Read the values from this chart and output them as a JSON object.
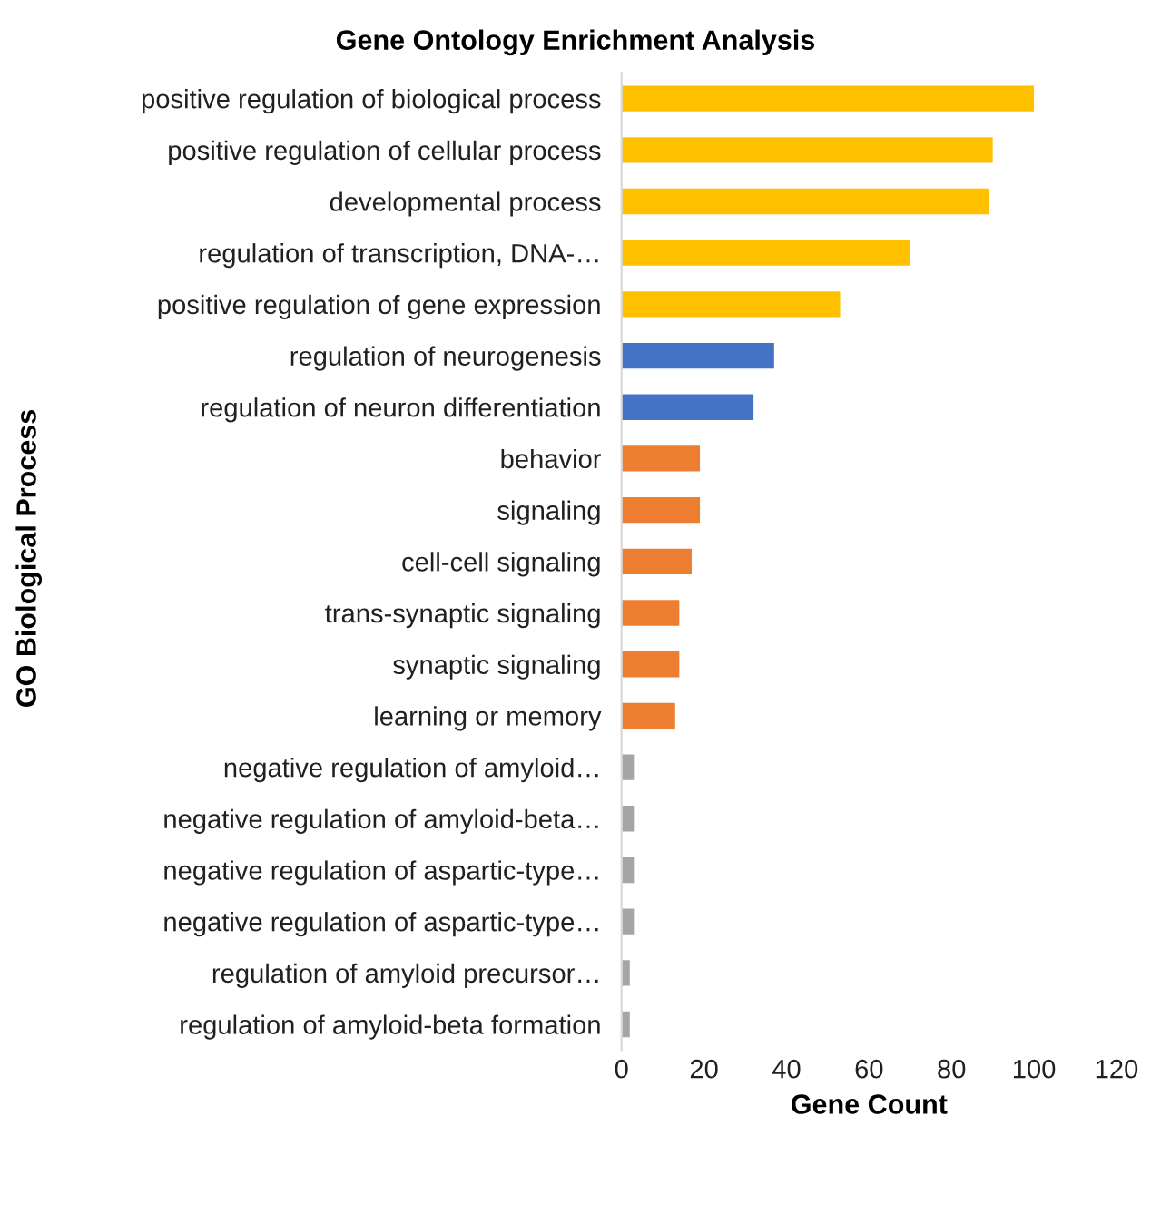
{
  "chart_data": {
    "type": "bar",
    "orientation": "horizontal",
    "title": "Gene Ontology Enrichment Analysis",
    "xlabel": "Gene Count",
    "ylabel": "GO Biological Process",
    "categories": [
      "positive regulation of biological process",
      "positive regulation of cellular process",
      "developmental process",
      "regulation of transcription, DNA-…",
      "positive regulation of gene expression",
      "regulation of neurogenesis",
      "regulation of neuron differentiation",
      "behavior",
      "signaling",
      "cell-cell signaling",
      "trans-synaptic signaling",
      "synaptic signaling",
      "learning or memory",
      "negative regulation of amyloid…",
      "negative regulation of amyloid-beta…",
      "negative regulation of aspartic-type…",
      "negative regulation of aspartic-type…",
      "regulation of amyloid precursor…",
      "regulation of amyloid-beta formation"
    ],
    "values": [
      100,
      90,
      89,
      70,
      53,
      37,
      32,
      19,
      19,
      17,
      14,
      14,
      13,
      3,
      3,
      3,
      3,
      2,
      2
    ],
    "colors": [
      "#ffc000",
      "#ffc000",
      "#ffc000",
      "#ffc000",
      "#ffc000",
      "#4472c4",
      "#4472c4",
      "#ed7d31",
      "#ed7d31",
      "#ed7d31",
      "#ed7d31",
      "#ed7d31",
      "#ed7d31",
      "#a5a5a5",
      "#a5a5a5",
      "#a5a5a5",
      "#a5a5a5",
      "#a5a5a5",
      "#a5a5a5"
    ],
    "xlim": [
      0,
      120
    ],
    "xticks": [
      0,
      20,
      40,
      60,
      80,
      100,
      120
    ],
    "grid": false,
    "legend": false
  }
}
